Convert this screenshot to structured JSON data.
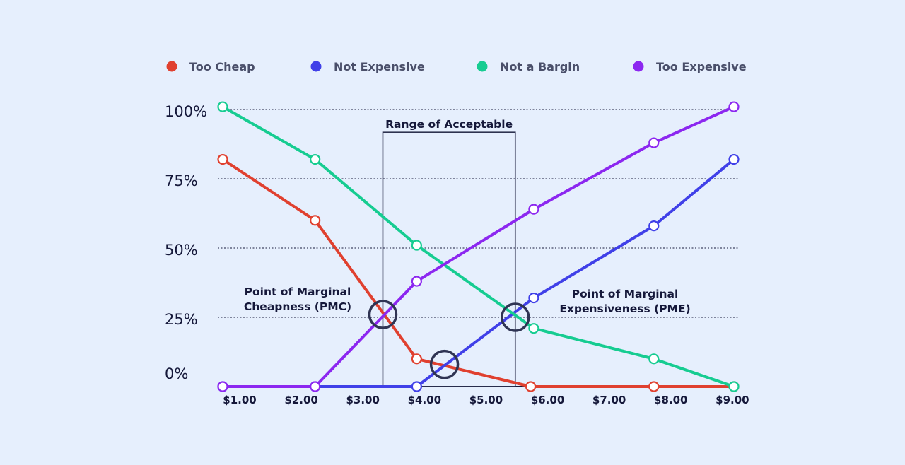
{
  "chart_data": {
    "type": "line",
    "xlabel": "",
    "ylabel": "",
    "categories": [
      "$1.00",
      "$2.00",
      "$3.00",
      "$4.00",
      "$5.00",
      "$6.00",
      "$7.00",
      "$8.00",
      "$9.00"
    ],
    "y_ticks": [
      "100%",
      "75%",
      "50%",
      "25%",
      "0%"
    ],
    "xlim": [
      1,
      9.3
    ],
    "ylim": [
      0,
      100
    ],
    "grid": "dotted horizontal",
    "legend_position": "top",
    "series": [
      {
        "name": "Too Cheap",
        "color": "#e0402f",
        "points": [
          [
            1.0,
            82
          ],
          [
            2.5,
            60
          ],
          [
            4.15,
            10
          ],
          [
            6.0,
            0
          ],
          [
            8.0,
            0
          ],
          [
            9.3,
            0
          ]
        ]
      },
      {
        "name": "Not Expensive",
        "color": "#4040e8",
        "points": [
          [
            1.0,
            0
          ],
          [
            2.5,
            0
          ],
          [
            4.15,
            0
          ],
          [
            6.05,
            32
          ],
          [
            8.0,
            58
          ],
          [
            9.3,
            82
          ]
        ]
      },
      {
        "name": "Not a Bargin",
        "color": "#16cc91",
        "points": [
          [
            1.0,
            101
          ],
          [
            2.5,
            82
          ],
          [
            4.15,
            51
          ],
          [
            6.05,
            21
          ],
          [
            8.0,
            10
          ],
          [
            9.3,
            0
          ]
        ]
      },
      {
        "name": "Too Expensive",
        "color": "#8c27f0",
        "points": [
          [
            1.0,
            0
          ],
          [
            2.5,
            0
          ],
          [
            4.15,
            38
          ],
          [
            6.05,
            64
          ],
          [
            8.0,
            88
          ],
          [
            9.3,
            101
          ]
        ]
      }
    ],
    "annotations": {
      "range_label": "Range of Acceptable",
      "pmc_line1": "Point of Marginal",
      "pmc_line2": "Cheapness (PMC)",
      "pme_line1": "Point of Marginal",
      "pme_line2": "Expensiveness (PME)",
      "range_box": {
        "x_start": 3.6,
        "x_end": 5.75,
        "y_top": 90
      },
      "circles": [
        [
          3.6,
          26
        ],
        [
          4.6,
          8
        ],
        [
          5.75,
          25
        ]
      ]
    }
  }
}
